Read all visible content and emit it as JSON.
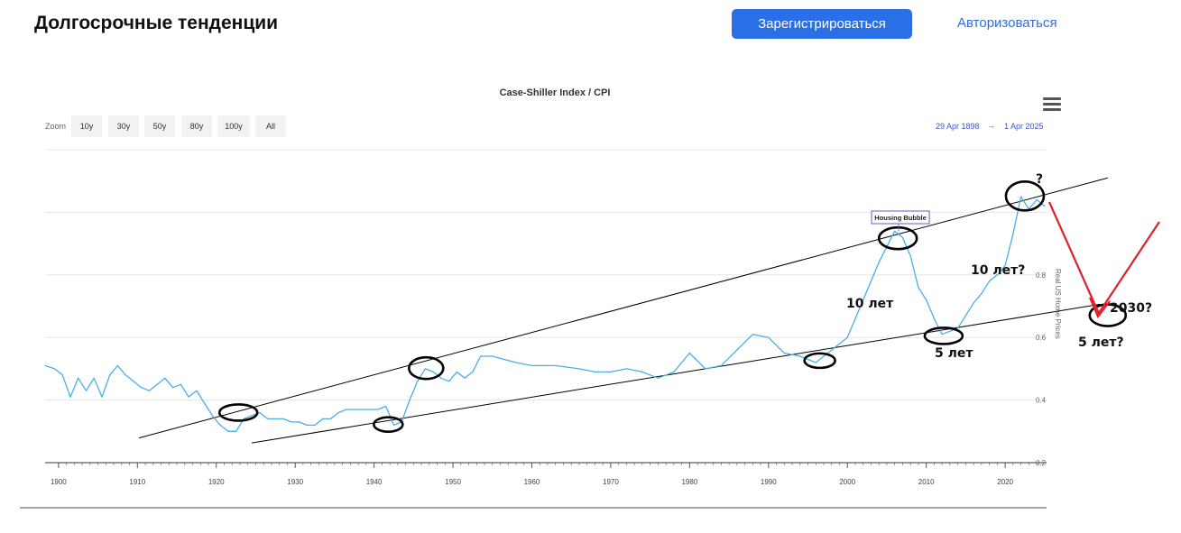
{
  "header": {
    "title": "Долгосрочные тенденции",
    "register_label": "Зарегистрироваться",
    "login_label": "Авторизоваться"
  },
  "toolbar": {
    "zoom_label": "Zoom",
    "zoom_options": [
      "10y",
      "30y",
      "50y",
      "80y",
      "100y",
      "All"
    ],
    "range_from": "29 Apr 1898",
    "range_separator": "→",
    "range_to": "1 Apr 2025",
    "menu_icon": "hamburger-menu-icon"
  },
  "colors": {
    "series": "#4aaee8",
    "trendline": "#000000",
    "arrow": "#e0202a",
    "accent": "#2b6fe6"
  },
  "chart_data": {
    "type": "line",
    "title": "Case-Shiller Index / CPI",
    "ylabel": "Real US Home Prices",
    "xlim": [
      1898.3,
      2025.25
    ],
    "ylim": [
      0.2,
      1.2
    ],
    "x_ticks": [
      1900,
      1910,
      1920,
      1930,
      1940,
      1950,
      1960,
      1970,
      1980,
      1990,
      2000,
      2010,
      2020
    ],
    "y_ticks": [
      0.2,
      0.4,
      0.6,
      0.8
    ],
    "grid": true,
    "series": [
      {
        "name": "",
        "color": "#4aaee8",
        "x": [
          1898.3,
          1899.5,
          1900.5,
          1901.5,
          1902.5,
          1903.5,
          1904.5,
          1905.5,
          1906.5,
          1907.5,
          1908.5,
          1909.5,
          1910.5,
          1911.5,
          1912.5,
          1913.5,
          1914.5,
          1915.5,
          1916.5,
          1917.5,
          1918.5,
          1919.5,
          1920.5,
          1921.5,
          1922.5,
          1923.5,
          1924.5,
          1925.5,
          1926.5,
          1927.5,
          1928.5,
          1929.5,
          1930.5,
          1931.5,
          1932.5,
          1933.5,
          1934.5,
          1935.5,
          1936.5,
          1937.5,
          1938.5,
          1939.5,
          1940.5,
          1941.5,
          1942.5,
          1943.5,
          1944.5,
          1945.5,
          1946.5,
          1947.5,
          1948.5,
          1949.5,
          1950.5,
          1951.5,
          1952.5,
          1953.5,
          1955,
          1958,
          1960,
          1963,
          1966,
          1968,
          1970,
          1972,
          1974,
          1976,
          1978,
          1980,
          1982,
          1984,
          1986,
          1988,
          1990,
          1992,
          1994,
          1996,
          1998,
          2000,
          2002,
          2004,
          2005,
          2006,
          2007,
          2008,
          2009,
          2010,
          2011,
          2012,
          2013,
          2014,
          2015,
          2016,
          2017,
          2018,
          2019,
          2020,
          2021,
          2022,
          2023,
          2024,
          2025
        ],
        "y": [
          0.51,
          0.5,
          0.48,
          0.41,
          0.47,
          0.43,
          0.47,
          0.41,
          0.48,
          0.51,
          0.48,
          0.46,
          0.44,
          0.43,
          0.45,
          0.47,
          0.44,
          0.45,
          0.41,
          0.43,
          0.39,
          0.35,
          0.32,
          0.3,
          0.3,
          0.34,
          0.35,
          0.36,
          0.34,
          0.34,
          0.34,
          0.33,
          0.33,
          0.32,
          0.32,
          0.34,
          0.34,
          0.36,
          0.37,
          0.37,
          0.37,
          0.37,
          0.37,
          0.38,
          0.32,
          0.33,
          0.4,
          0.46,
          0.5,
          0.49,
          0.47,
          0.46,
          0.49,
          0.47,
          0.49,
          0.54,
          0.54,
          0.52,
          0.51,
          0.51,
          0.5,
          0.49,
          0.49,
          0.5,
          0.49,
          0.47,
          0.49,
          0.55,
          0.5,
          0.51,
          0.56,
          0.61,
          0.6,
          0.55,
          0.54,
          0.52,
          0.56,
          0.6,
          0.72,
          0.84,
          0.89,
          0.94,
          0.92,
          0.86,
          0.76,
          0.72,
          0.66,
          0.61,
          0.62,
          0.63,
          0.67,
          0.71,
          0.74,
          0.78,
          0.8,
          0.83,
          0.93,
          1.05,
          1.01,
          1.04,
          1.02
        ]
      }
    ],
    "flags": [
      {
        "x": 2006.5,
        "label": "Housing Bubble"
      }
    ]
  },
  "overlay": {
    "annotations": [
      "?",
      "10 лет?",
      "10 лет",
      "5 лет",
      "2030?",
      "5 лет?"
    ]
  }
}
